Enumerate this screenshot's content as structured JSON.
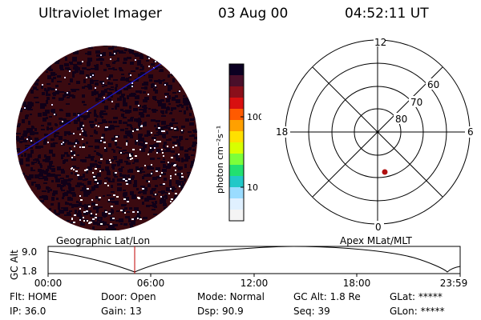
{
  "header": {
    "instrument": "Ultraviolet Imager",
    "date": "03 Aug 00",
    "time": "04:52:11 UT"
  },
  "colorbar": {
    "label": "photon cm⁻²s⁻¹",
    "ticks": [
      "100",
      "10"
    ],
    "colors": [
      "#0c0022",
      "#4a0f2a",
      "#8a0f1a",
      "#d81010",
      "#ff5a00",
      "#ffa000",
      "#ffe000",
      "#d8ff00",
      "#7cff3a",
      "#22e070",
      "#22c8c8",
      "#9adcff",
      "#e0f0ff",
      "#f4f4f4"
    ]
  },
  "polar_plot": {
    "labels": [
      "12",
      "18",
      "6",
      "0",
      "60",
      "70",
      "80"
    ],
    "colors": {
      "marker": "#b01010"
    }
  },
  "timeline": {
    "left_title": "Geographic Lat/Lon",
    "right_title": "Apex MLat/MLT",
    "ylabel": "GC Alt",
    "y_ticks": [
      "9.0",
      "1.8"
    ],
    "x_ticks": [
      "00:00",
      "06:00",
      "12:00",
      "18:00",
      "23:59"
    ],
    "colors": {
      "cursor": "#c00000"
    }
  },
  "status": {
    "row1": [
      {
        "label": "Flt:",
        "value": "HOME"
      },
      {
        "label": "Door:",
        "value": "Open"
      },
      {
        "label": "Mode:",
        "value": "Normal"
      },
      {
        "label": "GC Alt:",
        "value": "1.8 Re"
      },
      {
        "label": "GLat:",
        "value": "*****"
      }
    ],
    "row2": [
      {
        "label": "IP:",
        "value": "36.0"
      },
      {
        "label": "Gain:",
        "value": "13"
      },
      {
        "label": "Dsp:",
        "value": "90.9"
      },
      {
        "label": "Seq:",
        "value": "39"
      },
      {
        "label": "GLon:",
        "value": "*****"
      }
    ]
  },
  "colors": {
    "disk_background": "#3a0a10",
    "disk_dark": "#100018",
    "track_line": "#1a1ad0"
  }
}
